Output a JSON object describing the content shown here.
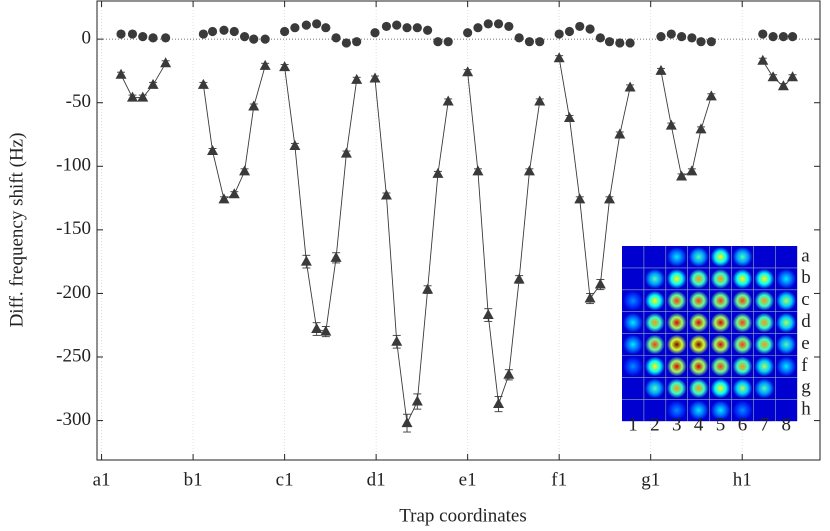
{
  "chart_data": {
    "type": "line",
    "xlabel": "Trap coordinates",
    "ylabel": "Diff. frequency shift (Hz)",
    "xlim": [
      -0.4,
      62.8
    ],
    "ylim": [
      -331,
      30
    ],
    "xticks": [
      {
        "value": 0,
        "label": "a1"
      },
      {
        "value": 8,
        "label": "b1"
      },
      {
        "value": 16,
        "label": "c1"
      },
      {
        "value": 24,
        "label": "d1"
      },
      {
        "value": 32,
        "label": "e1"
      },
      {
        "value": 40,
        "label": "f1"
      },
      {
        "value": 48,
        "label": "g1"
      },
      {
        "value": 56,
        "label": "h1"
      }
    ],
    "yticks": [
      0,
      -50,
      -100,
      -150,
      -200,
      -250,
      -300
    ],
    "grid": "x",
    "zero_line": true,
    "x": [
      1.7,
      2.7,
      3.6,
      4.5,
      5.6,
      null,
      8.9,
      9.7,
      10.7,
      11.6,
      12.5,
      13.3,
      14.3,
      null,
      16.0,
      16.9,
      17.9,
      18.8,
      19.6,
      20.5,
      21.4,
      22.3,
      null,
      23.9,
      24.9,
      25.8,
      26.7,
      27.6,
      28.5,
      29.4,
      30.3,
      null,
      32.0,
      32.9,
      33.8,
      34.7,
      35.6,
      36.5,
      37.4,
      38.3,
      null,
      40.0,
      40.9,
      41.8,
      42.7,
      43.6,
      44.4,
      45.3,
      46.2,
      null,
      48.9,
      49.8,
      50.7,
      51.6,
      52.4,
      53.3,
      null,
      57.8,
      58.7,
      59.6,
      60.4
    ],
    "series": [
      {
        "marker": "circle",
        "color": "#3a3a3a",
        "line": false,
        "values": [
          4,
          4,
          2,
          1,
          1,
          null,
          4,
          6,
          7,
          6,
          2,
          0,
          0,
          null,
          6,
          9,
          11,
          12,
          9,
          1,
          -3,
          -2,
          null,
          5,
          10,
          11,
          9,
          9,
          7,
          -2,
          -2,
          null,
          5,
          9,
          12,
          12,
          10,
          1,
          -2,
          -2,
          null,
          4,
          6,
          10,
          8,
          1,
          -2,
          -3,
          -3,
          null,
          2,
          4,
          2,
          1,
          -2,
          -2,
          null,
          4,
          2,
          2,
          2
        ]
      },
      {
        "marker": "triangle",
        "color": "#3a3a3a",
        "line": true,
        "values": [
          -28,
          -46,
          -46,
          -36,
          -19,
          null,
          -36,
          -88,
          -126,
          -122,
          -104,
          -53,
          -21,
          null,
          -22,
          -84,
          -175,
          -228,
          -230,
          -172,
          -90,
          -32,
          null,
          -31,
          -123,
          -238,
          -302,
          -285,
          -197,
          -106,
          -49,
          null,
          -26,
          -104,
          -217,
          -287,
          -264,
          -189,
          -104,
          -49,
          null,
          -15,
          -62,
          -126,
          -204,
          -193,
          -126,
          -75,
          -38,
          null,
          -25,
          -68,
          -108,
          -104,
          -71,
          -45,
          null,
          -17,
          -30,
          -37,
          -30
        ],
        "errors": [
          2,
          2,
          2,
          2,
          2,
          null,
          2,
          2,
          2,
          2,
          2,
          2,
          2,
          null,
          2,
          2,
          5,
          5,
          4,
          4,
          2,
          2,
          null,
          2,
          2,
          5,
          7,
          6,
          3,
          2,
          2,
          null,
          2,
          2,
          5,
          6,
          4,
          3,
          2,
          2,
          null,
          2,
          2,
          2,
          4,
          4,
          2,
          2,
          2,
          null,
          2,
          2,
          2,
          2,
          2,
          2,
          null,
          2,
          2,
          2,
          2
        ]
      }
    ],
    "inset": {
      "row_labels": [
        "a",
        "b",
        "c",
        "d",
        "e",
        "f",
        "g",
        "h"
      ],
      "col_labels": [
        "1",
        "2",
        "3",
        "4",
        "5",
        "6",
        "7",
        "8"
      ],
      "intensity": [
        [
          0,
          0,
          0.3,
          0.4,
          0.6,
          0.4,
          0,
          0
        ],
        [
          0,
          0.4,
          0.6,
          0.7,
          0.7,
          0.6,
          0.6,
          0.3
        ],
        [
          0.2,
          0.6,
          0.8,
          0.8,
          0.8,
          0.8,
          0.7,
          0.5
        ],
        [
          0.3,
          0.7,
          0.9,
          0.9,
          0.9,
          0.8,
          0.7,
          0.5
        ],
        [
          0.3,
          0.8,
          1,
          1,
          0.9,
          0.8,
          0.7,
          0.4
        ],
        [
          0.2,
          0.6,
          0.9,
          0.9,
          0.8,
          0.7,
          0.5,
          0.3
        ],
        [
          0,
          0.4,
          0.7,
          0.7,
          0.6,
          0.5,
          0.4,
          0
        ],
        [
          0,
          0,
          0.2,
          0.3,
          0.3,
          0.2,
          0,
          0
        ]
      ]
    }
  }
}
